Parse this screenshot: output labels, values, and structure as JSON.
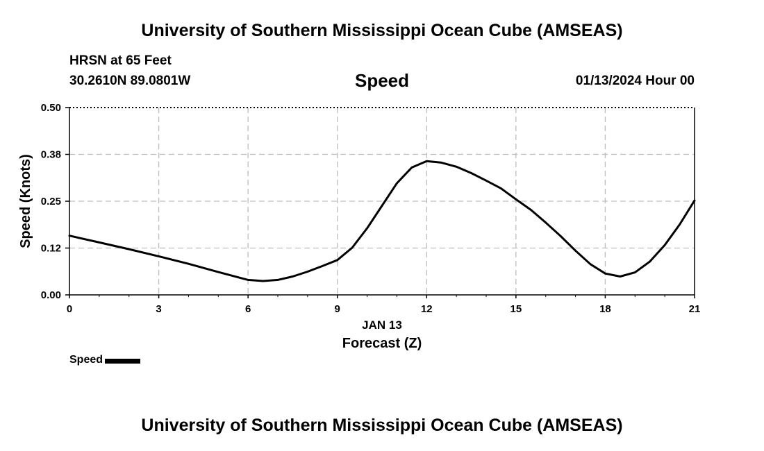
{
  "header": {
    "title": "University of Southern Mississippi Ocean Cube (AMSEAS)",
    "station": "HRSN at 65 Feet",
    "coords": "30.2610N  89.0801W",
    "variable": "Speed",
    "datetime": "01/13/2024 Hour 00"
  },
  "footer": {
    "title": "University of Southern Mississippi Ocean Cube (AMSEAS)"
  },
  "legend": {
    "label": "Speed"
  },
  "chart_data": {
    "type": "line",
    "ylabel": "Speed (Knots)",
    "xlabel_date": "JAN 13",
    "xlabel": "Forecast (Z)",
    "xlim": [
      0,
      21
    ],
    "ylim": [
      0,
      0.5
    ],
    "x_ticks": [
      0,
      3,
      6,
      9,
      12,
      15,
      18,
      21
    ],
    "x_tick_labels": [
      "0",
      "3",
      "6",
      "9",
      "12",
      "15",
      "18",
      "21"
    ],
    "y_ticks": [
      0,
      0.125,
      0.25,
      0.375,
      0.5
    ],
    "y_tick_labels": [
      "0.00",
      "0.12",
      "0.25",
      "0.38",
      "0.50"
    ],
    "grid": true,
    "line_color": "#000000",
    "series": [
      {
        "name": "Speed",
        "x": [
          0,
          1,
          2,
          3,
          4,
          5,
          6,
          6.5,
          7,
          7.5,
          8,
          8.5,
          9,
          9.5,
          10,
          10.5,
          11,
          11.5,
          12,
          12.5,
          13,
          13.5,
          14,
          14.5,
          15,
          15.5,
          16,
          16.5,
          17,
          17.5,
          18,
          18.5,
          19,
          19.5,
          20,
          20.5,
          21
        ],
        "y": [
          0.158,
          0.14,
          0.122,
          0.103,
          0.083,
          0.061,
          0.04,
          0.037,
          0.04,
          0.049,
          0.062,
          0.077,
          0.093,
          0.126,
          0.178,
          0.238,
          0.298,
          0.34,
          0.357,
          0.353,
          0.342,
          0.325,
          0.305,
          0.284,
          0.255,
          0.227,
          0.193,
          0.157,
          0.118,
          0.082,
          0.057,
          0.049,
          0.06,
          0.089,
          0.133,
          0.188,
          0.252
        ]
      }
    ]
  }
}
